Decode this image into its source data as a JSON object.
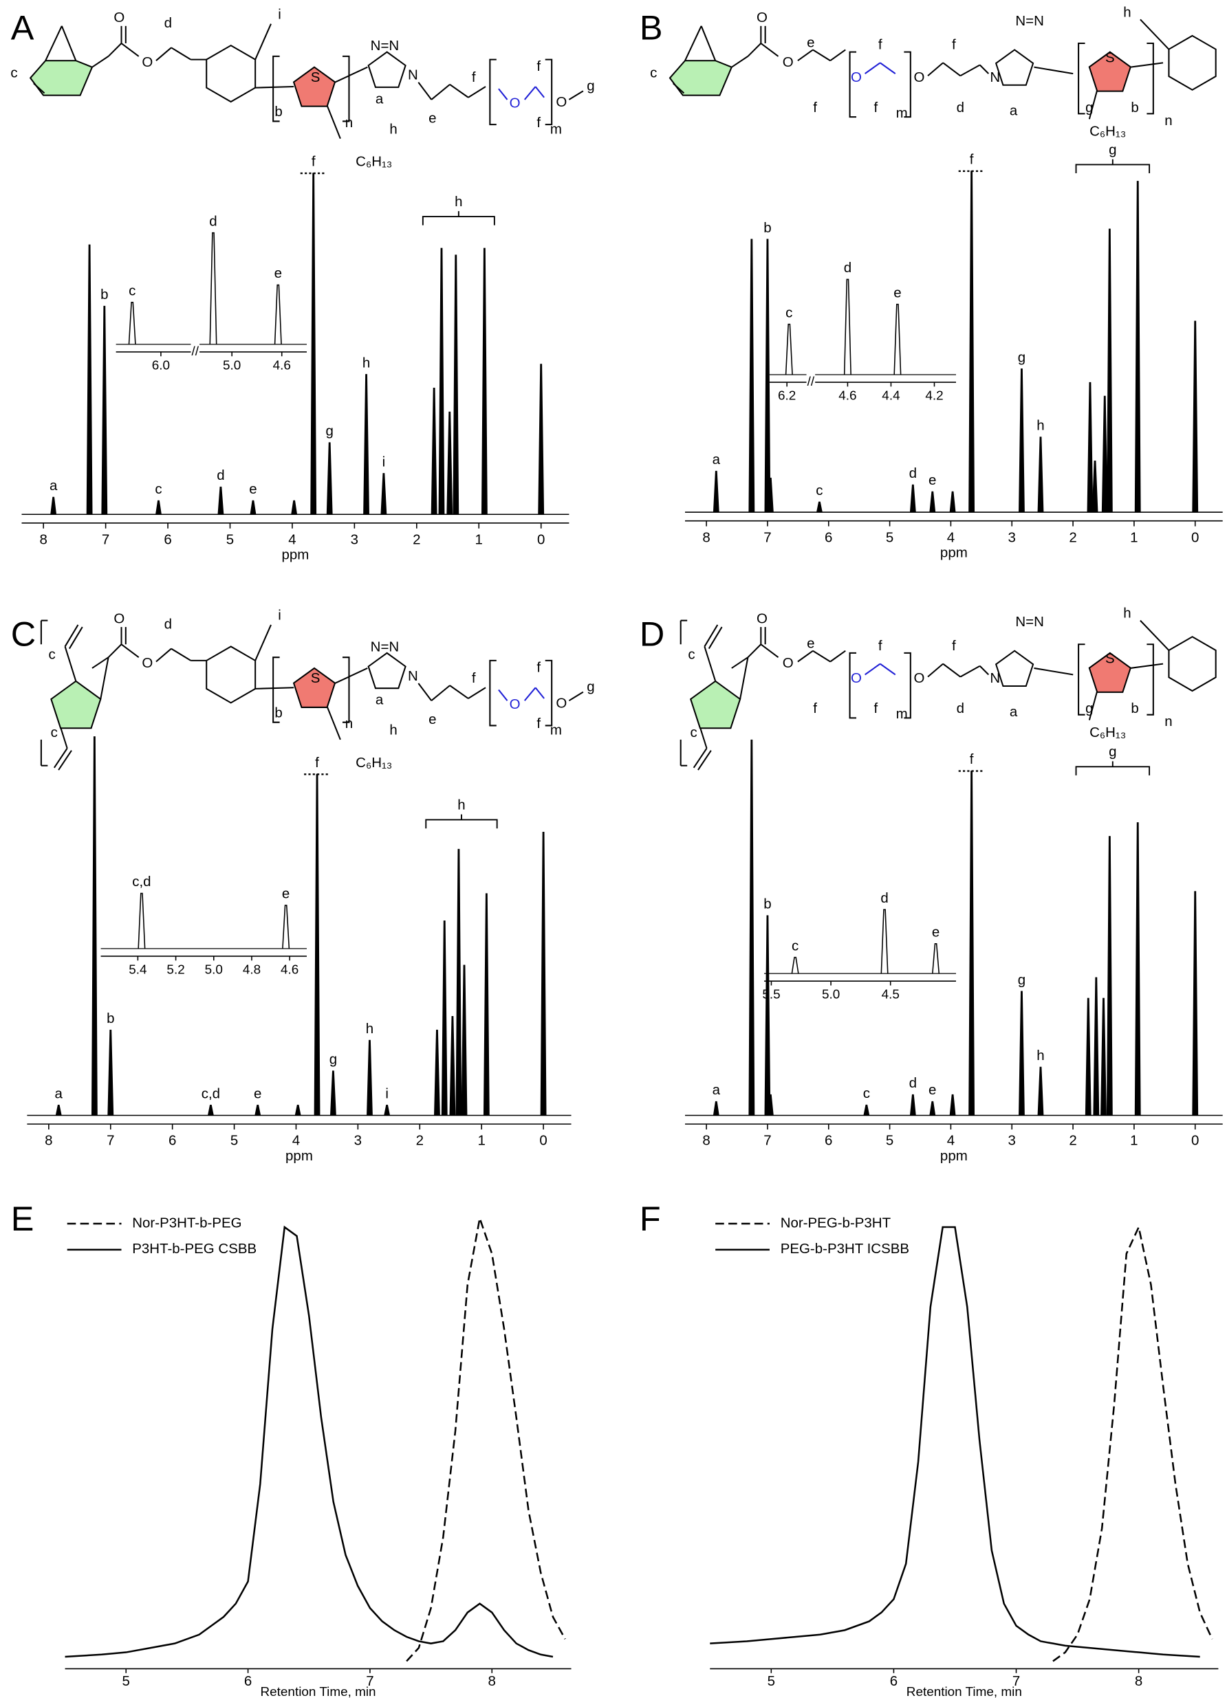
{
  "chart_data": [
    {
      "panel": "A",
      "type": "spectrum",
      "structure_labels": [
        "c",
        "O",
        "O",
        "d",
        "i",
        "S",
        "n",
        "b",
        "C₆H₁₃",
        "h",
        "N=N",
        "N",
        "a",
        "e",
        "f",
        "O",
        "f",
        "f",
        "m",
        "O",
        "g"
      ],
      "xlabel": "ppm",
      "xlim": [
        8.35,
        -0.45
      ],
      "xticks": [
        8,
        7,
        6,
        5,
        4,
        3,
        2,
        1,
        0
      ],
      "ylim": [
        0,
        100
      ],
      "color": "#000000",
      "x": [
        7.84,
        7.26,
        7.02,
        6.15,
        5.15,
        4.63,
        3.97,
        3.66,
        3.4,
        2.81,
        2.53,
        1.72,
        1.6,
        1.47,
        1.37,
        0.91,
        0
      ],
      "values": [
        5,
        79,
        61,
        4,
        8,
        4,
        4,
        100,
        21,
        41,
        12,
        37,
        78,
        30,
        76,
        78,
        44
      ],
      "peak_labels": [
        "a",
        null,
        "b",
        "c",
        "d",
        "e",
        null,
        "f",
        "g",
        "h",
        "i",
        null,
        null,
        null,
        null,
        null,
        null
      ],
      "bracket": {
        "label": "h",
        "x": [
          1.9,
          0.75
        ]
      },
      "inset": {
        "xlim": [
          [
            6.36,
            5.76
          ],
          [
            5.26,
            4.4
          ]
        ],
        "xticks": [
          {
            "value": 6,
            "label": "6.0"
          },
          {
            "value": 5,
            "label": "5.0"
          },
          4.6
        ],
        "x": [
          6.23,
          5.15,
          4.63
        ],
        "values": [
          40,
          100,
          55
        ],
        "peak_labels": [
          "c",
          "d",
          "e"
        ]
      }
    },
    {
      "panel": "B",
      "type": "spectrum",
      "structure_labels": [
        "c",
        "O",
        "O",
        "e",
        "f",
        "O",
        "f",
        "f",
        "m",
        "O",
        "f",
        "d",
        "N",
        "N=N",
        "a",
        "S",
        "g",
        "C₆H₁₃",
        "b",
        "n",
        "h"
      ],
      "xlabel": "ppm",
      "xlim": [
        8.35,
        -0.45
      ],
      "xticks": [
        8,
        7,
        6,
        5,
        4,
        3,
        2,
        1,
        0
      ],
      "ylim": [
        0,
        100
      ],
      "color": "#000000",
      "x": [
        7.84,
        7.26,
        7.0,
        6.95,
        6.15,
        4.62,
        4.3,
        3.97,
        3.66,
        2.84,
        2.53,
        1.72,
        1.64,
        1.48,
        1.4,
        0.94,
        0
      ],
      "values": [
        12,
        80,
        80,
        10,
        3,
        8,
        6,
        6,
        100,
        42,
        22,
        38,
        15,
        34,
        83,
        97,
        56
      ],
      "peak_labels": [
        "a",
        null,
        "b",
        null,
        "c",
        "d",
        "e",
        null,
        "f",
        "g",
        "h",
        null,
        null,
        null,
        null,
        null,
        null
      ],
      "bracket": {
        "label": "g",
        "x": [
          1.95,
          0.75
        ]
      },
      "inset": {
        "xlim": [
          [
            6.28,
            6.11
          ],
          [
            4.75,
            4.1
          ]
        ],
        "xticks": [
          6.2,
          4.6,
          4.4,
          4.2
        ],
        "x": [
          6.19,
          4.6,
          4.37
        ],
        "values": [
          55,
          100,
          75
        ],
        "peak_labels": [
          "c",
          "d",
          "e"
        ]
      }
    },
    {
      "panel": "C",
      "type": "spectrum",
      "structure_labels": [
        "c",
        "c",
        "O",
        "O",
        "d",
        "i",
        "S",
        "n",
        "b",
        "C₆H₁₃",
        "h",
        "N=N",
        "N",
        "a",
        "e",
        "f",
        "O",
        "f",
        "f",
        "m",
        "O",
        "g"
      ],
      "xlabel": "ppm",
      "xlim": [
        8.35,
        -0.45
      ],
      "xticks": [
        8,
        7,
        6,
        5,
        4,
        3,
        2,
        1,
        0
      ],
      "ylim": [
        0,
        100
      ],
      "color": "#000000",
      "x": [
        7.84,
        7.26,
        7.0,
        5.38,
        4.62,
        3.97,
        3.66,
        3.4,
        2.81,
        2.53,
        1.72,
        1.6,
        1.47,
        1.37,
        1.28,
        0.92,
        0
      ],
      "values": [
        3,
        111,
        25,
        3,
        3,
        3,
        100,
        13,
        22,
        3,
        25,
        57,
        29,
        78,
        44,
        65,
        83
      ],
      "peak_labels": [
        "a",
        null,
        "b",
        "c,d",
        "e",
        null,
        "f",
        "g",
        "h",
        "i",
        null,
        null,
        null,
        null,
        null,
        null,
        null
      ],
      "bracket": {
        "label": "h",
        "x": [
          1.9,
          0.75
        ]
      },
      "inset": {
        "xlim": [
          [
            5.595,
            4.51
          ]
        ],
        "xticks": [
          5.4,
          5.2,
          {
            "value": 5,
            "label": "5.0"
          },
          4.8,
          4.6
        ],
        "x": [
          5.38,
          4.62
        ],
        "values": [
          100,
          80
        ],
        "peak_labels": [
          "c,d",
          "e"
        ]
      }
    },
    {
      "panel": "D",
      "type": "spectrum",
      "structure_labels": [
        "c",
        "c",
        "O",
        "O",
        "e",
        "f",
        "O",
        "f",
        "f",
        "m",
        "O",
        "f",
        "d",
        "N",
        "N=N",
        "a",
        "S",
        "g",
        "C₆H₁₃",
        "b",
        "n",
        "h"
      ],
      "xlabel": "ppm",
      "xlim": [
        8.35,
        -0.45
      ],
      "xticks": [
        8,
        7,
        6,
        5,
        4,
        3,
        2,
        1,
        0
      ],
      "ylim": [
        0,
        100
      ],
      "color": "#000000",
      "x": [
        7.84,
        7.26,
        7.0,
        6.95,
        5.38,
        4.62,
        4.3,
        3.97,
        3.66,
        2.84,
        2.53,
        1.75,
        1.62,
        1.5,
        1.4,
        0.94,
        0
      ],
      "values": [
        4,
        109,
        58,
        6,
        3,
        6,
        4,
        6,
        100,
        36,
        14,
        34,
        40,
        34,
        81,
        85,
        65
      ],
      "peak_labels": [
        "a",
        null,
        "b",
        null,
        "c",
        "d",
        "e",
        null,
        "f",
        "g",
        "h",
        null,
        null,
        null,
        null,
        null,
        null
      ],
      "bracket": {
        "label": "g",
        "x": [
          1.95,
          0.75
        ]
      },
      "inset": {
        "xlim": [
          [
            5.56,
            3.95
          ]
        ],
        "xticks": [
          5.5,
          {
            "value": 5,
            "label": "5.0"
          },
          4.5
        ],
        "x": [
          5.3,
          4.55,
          4.12
        ],
        "values": [
          30,
          100,
          50
        ],
        "peak_labels": [
          "c",
          "d",
          "e"
        ]
      }
    },
    {
      "panel": "E",
      "type": "line",
      "xlabel": "Retention Time, min",
      "xlim": [
        4.5,
        8.65
      ],
      "xticks": [
        5,
        6,
        7,
        8
      ],
      "ylim": [
        0,
        100
      ],
      "series": [
        {
          "name": "Nor-P3HT-b-PEG",
          "color": "#000000",
          "style": "dashed",
          "x": [
            7.3,
            7.4,
            7.5,
            7.6,
            7.7,
            7.8,
            7.9,
            8.0,
            8.1,
            8.2,
            8.3,
            8.4,
            8.5,
            8.6
          ],
          "values": [
            0,
            3,
            12,
            28,
            52,
            85,
            100,
            92,
            75,
            55,
            34,
            20,
            10,
            5
          ]
        },
        {
          "name": "P3HT-b-PEG CSBB",
          "color": "#000000",
          "style": "solid",
          "x": [
            4.5,
            4.8,
            5.0,
            5.2,
            5.4,
            5.6,
            5.7,
            5.8,
            5.9,
            6.0,
            6.1,
            6.2,
            6.3,
            6.4,
            6.5,
            6.6,
            6.7,
            6.8,
            6.9,
            7.0,
            7.1,
            7.2,
            7.3,
            7.4,
            7.5,
            7.6,
            7.7,
            7.8,
            7.9,
            8.0,
            8.1,
            8.2,
            8.3,
            8.4,
            8.5
          ],
          "values": [
            1,
            1.5,
            2,
            3,
            4,
            6,
            8,
            10,
            13,
            18,
            40,
            75,
            98,
            96,
            78,
            55,
            36,
            24,
            17,
            12,
            9,
            7,
            5.5,
            4.5,
            4,
            4.5,
            7,
            11,
            13,
            11,
            7,
            4,
            2.5,
            1.5,
            1
          ]
        }
      ]
    },
    {
      "panel": "F",
      "type": "line",
      "xlabel": "Retention Time, min",
      "xlim": [
        4.5,
        8.65
      ],
      "xticks": [
        5,
        6,
        7,
        8
      ],
      "ylim": [
        0,
        100
      ],
      "series": [
        {
          "name": "Nor-PEG-b-P3HT",
          "color": "#000000",
          "style": "dashed",
          "x": [
            7.3,
            7.4,
            7.5,
            7.6,
            7.7,
            7.8,
            7.9,
            8.0,
            8.1,
            8.2,
            8.3,
            8.4,
            8.5,
            8.6
          ],
          "values": [
            0,
            2,
            6,
            14,
            30,
            58,
            92,
            98,
            85,
            62,
            40,
            22,
            11,
            5
          ]
        },
        {
          "name": "PEG-b-P3HT ICSBB",
          "color": "#000000",
          "style": "solid",
          "x": [
            4.5,
            4.8,
            5.0,
            5.2,
            5.4,
            5.6,
            5.8,
            5.9,
            6.0,
            6.1,
            6.2,
            6.3,
            6.4,
            6.5,
            6.6,
            6.7,
            6.8,
            6.9,
            7.0,
            7.1,
            7.2,
            7.3,
            7.4,
            7.6,
            7.8,
            8.0,
            8.2,
            8.5
          ],
          "values": [
            4,
            4.5,
            5,
            5.5,
            6,
            7,
            9,
            11,
            14,
            22,
            45,
            80,
            98,
            98,
            80,
            50,
            25,
            13,
            8,
            6,
            4.5,
            4,
            3.5,
            3,
            2.5,
            2,
            1.5,
            1
          ]
        }
      ]
    }
  ]
}
